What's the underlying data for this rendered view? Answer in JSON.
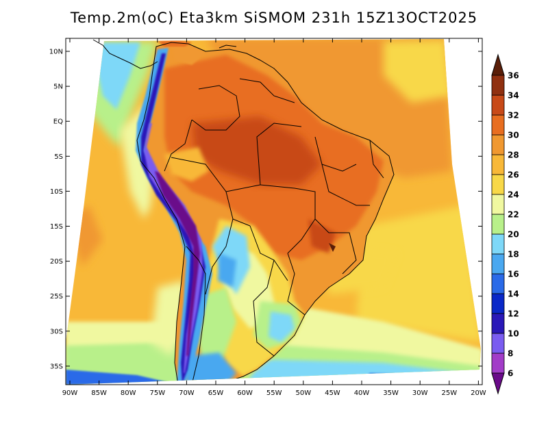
{
  "title": "Temp.2m(oC) Eta3km SiSMOM 231h 15Z13OCT2025",
  "variable": "Temp.2m(oC)",
  "model": "Eta3km",
  "system": "SiSMOM",
  "forecast_hour": "231h",
  "valid_time": "15Z13OCT2025",
  "axes": {
    "lat_labels": [
      "10N",
      "5N",
      "EQ",
      "5S",
      "10S",
      "15S",
      "20S",
      "25S",
      "30S",
      "35S"
    ],
    "lon_labels": [
      "90W",
      "85W",
      "80W",
      "75W",
      "70W",
      "65W",
      "60W",
      "55W",
      "50W",
      "45W",
      "40W",
      "35W",
      "30W",
      "25W",
      "20W"
    ]
  },
  "colorbar": {
    "levels": [
      "6",
      "8",
      "10",
      "12",
      "14",
      "16",
      "18",
      "20",
      "22",
      "24",
      "26",
      "28",
      "30",
      "32",
      "34",
      "36"
    ],
    "colors": [
      "#6a0a8a",
      "#a23cc8",
      "#7a5cf0",
      "#2a18b8",
      "#0a28c8",
      "#2a6ae8",
      "#4aa8f0",
      "#7ed8f8",
      "#b8f08a",
      "#f0f8a0",
      "#f8d848",
      "#f8b838",
      "#f09830",
      "#e86e20",
      "#c84a18",
      "#903010",
      "#5a1e08"
    ]
  }
}
